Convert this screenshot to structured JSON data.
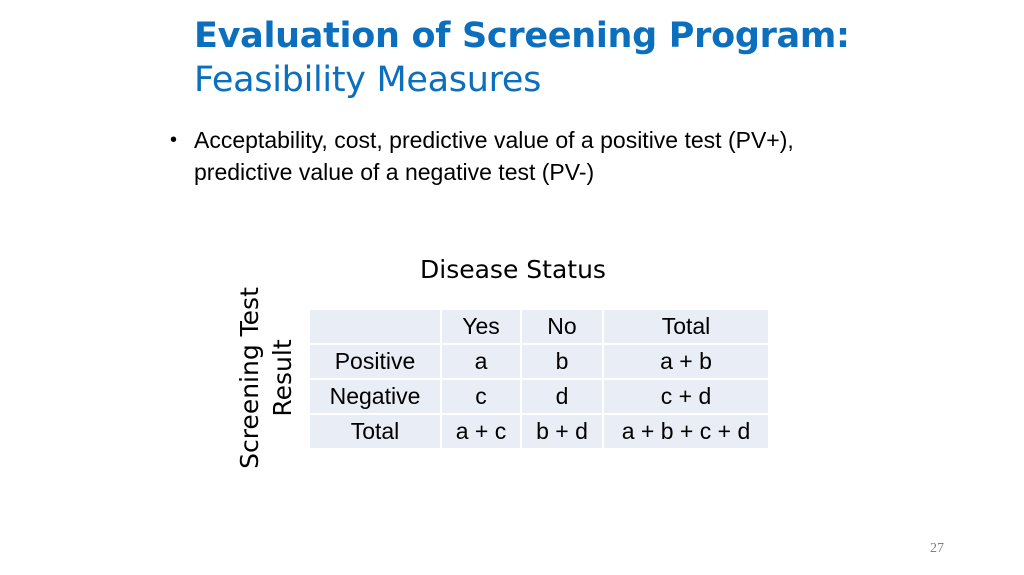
{
  "title": {
    "bold": "Evaluation of Screening Program:",
    "normal": "Feasibility Measures"
  },
  "bullets": [
    {
      "text": "Acceptability, cost, predictive  value of a positive test (PV+), predictive value of a negative test (PV-)"
    }
  ],
  "table_caption": "Disease Status",
  "row_axis_label": "Screening Test Result",
  "table": {
    "header": [
      "",
      "Yes",
      "No",
      "Total"
    ],
    "rows": [
      [
        "Positive",
        "a",
        "b",
        "a + b"
      ],
      [
        "Negative",
        "c",
        "d",
        "c + d"
      ],
      [
        "Total",
        "a + c",
        "b + d",
        "a + b + c + d"
      ]
    ]
  },
  "page_number": "27",
  "colors": {
    "title": "#0b6fbe",
    "cell_background": "#e9edf5",
    "page_number": "#7f7f7f"
  }
}
